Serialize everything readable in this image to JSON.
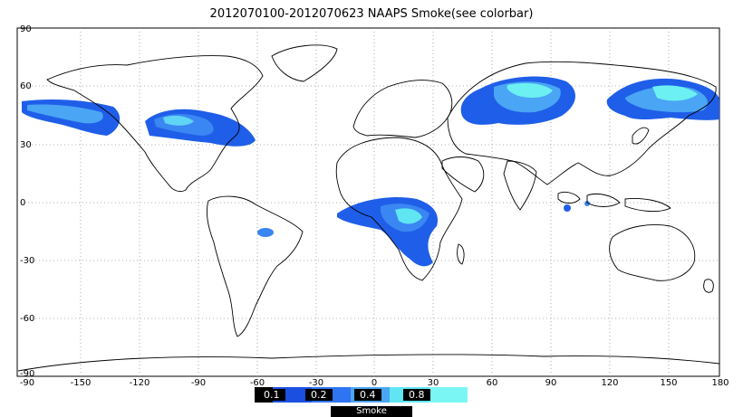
{
  "title": "2012070100-2012070623 NAAPS Smoke(see colorbar)",
  "axes": {
    "lon_ticks": [
      "-90",
      "-150",
      "-120",
      "-90",
      "-60",
      "-30",
      "0",
      "30",
      "60",
      "90",
      "120",
      "150",
      "180"
    ],
    "lat_ticks": [
      "90",
      "60",
      "30",
      "0",
      "-30",
      "-60",
      "-90"
    ]
  },
  "colorbar": {
    "label": "Smoke",
    "levels": [
      "0.1",
      "0.2",
      "0.4",
      "0.8"
    ],
    "colors": [
      "#1a4fe0",
      "#2f74f0",
      "#4aa5f5",
      "#5fe6f2",
      "#7af7f4"
    ]
  },
  "map_colors": {
    "land_outline": "#000000",
    "grid": "#888888",
    "frame": "#000000"
  }
}
